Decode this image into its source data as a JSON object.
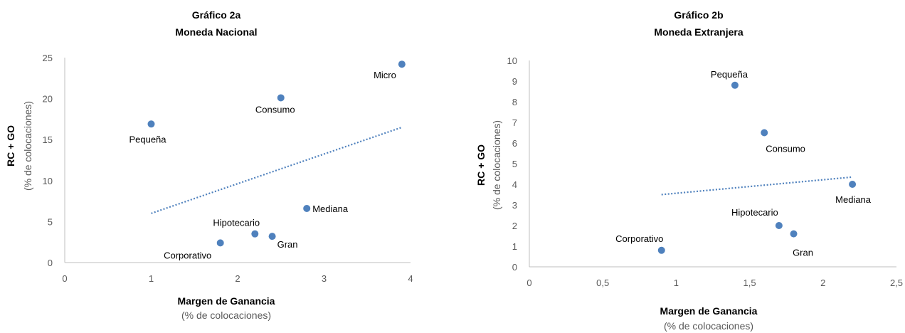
{
  "chart_data": [
    {
      "type": "scatter",
      "title": "Gráfico 2a",
      "subtitle": "Moneda Nacional",
      "xlabel": "Margen de Ganancia",
      "xlabel_sub": "(% de colocaciones)",
      "ylabel": "RC + GO",
      "ylabel_sub": "(% de colocaciones)",
      "xlim": [
        0,
        4
      ],
      "ylim": [
        0,
        25
      ],
      "xticks": [
        0,
        1,
        2,
        3,
        4
      ],
      "yticks": [
        0,
        5,
        10,
        15,
        20,
        25
      ],
      "xtick_labels": [
        "0",
        "1",
        "2",
        "3",
        "4"
      ],
      "ytick_labels": [
        "0",
        "5",
        "10",
        "15",
        "20",
        "25"
      ],
      "points": [
        {
          "name": "Micro",
          "x": 3.9,
          "y": 24.2
        },
        {
          "name": "Consumo",
          "x": 2.5,
          "y": 20.1
        },
        {
          "name": "Pequeña",
          "x": 1.0,
          "y": 16.9
        },
        {
          "name": "Mediana",
          "x": 2.8,
          "y": 6.6
        },
        {
          "name": "Hipotecario",
          "x": 2.2,
          "y": 3.5
        },
        {
          "name": "Gran",
          "x": 2.4,
          "y": 3.2
        },
        {
          "name": "Corporativo",
          "x": 1.8,
          "y": 2.4
        }
      ],
      "trendline": {
        "x": [
          1.0,
          3.9
        ],
        "y": [
          6.0,
          16.5
        ]
      },
      "grid": false,
      "colors": {
        "marker": "#4F81BD",
        "trend": "#4F81BD"
      }
    },
    {
      "type": "scatter",
      "title": "Gráfico 2b",
      "subtitle": "Moneda Extranjera",
      "xlabel": "Margen de Ganancia",
      "xlabel_sub": "(% de colocaciones)",
      "ylabel": "RC + GO",
      "ylabel_sub": "(% de colocaciones)",
      "xlim": [
        0,
        2.5
      ],
      "ylim": [
        0,
        10
      ],
      "xticks": [
        0,
        0.5,
        1,
        1.5,
        2,
        2.5
      ],
      "yticks": [
        0,
        1,
        2,
        3,
        4,
        5,
        6,
        7,
        8,
        9,
        10
      ],
      "xtick_labels": [
        "0",
        "0,5",
        "1",
        "1,5",
        "2",
        "2,5"
      ],
      "ytick_labels": [
        "0",
        "1",
        "2",
        "3",
        "4",
        "5",
        "6",
        "7",
        "8",
        "9",
        "10"
      ],
      "points": [
        {
          "name": "Pequeña",
          "x": 1.4,
          "y": 8.8
        },
        {
          "name": "Consumo",
          "x": 1.6,
          "y": 6.5
        },
        {
          "name": "Mediana",
          "x": 2.2,
          "y": 4.0
        },
        {
          "name": "Hipotecario",
          "x": 1.7,
          "y": 2.0
        },
        {
          "name": "Gran",
          "x": 1.8,
          "y": 1.6
        },
        {
          "name": "Corporativo",
          "x": 0.9,
          "y": 0.8
        }
      ],
      "trendline": {
        "x": [
          0.9,
          2.2
        ],
        "y": [
          3.5,
          4.35
        ]
      },
      "grid": false,
      "colors": {
        "marker": "#4F81BD",
        "trend": "#4F81BD"
      }
    }
  ]
}
